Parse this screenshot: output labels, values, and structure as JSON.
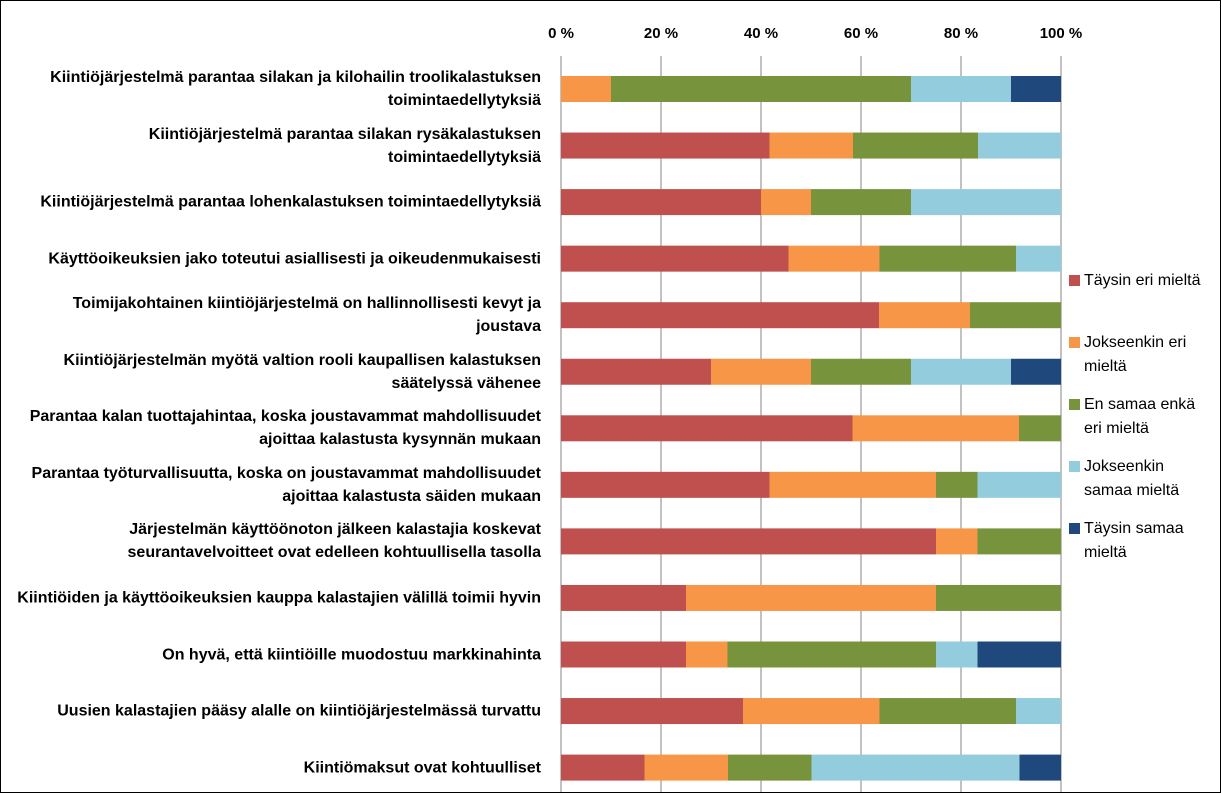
{
  "chart_data": {
    "type": "stacked_barh",
    "categories": [
      "Kiintiöjärjestelmä parantaa silakan ja kilohailin troolikalastuksen toimintaedellytyksiä",
      "Kiintiöjärjestelmä parantaa silakan rysäkalastuksen toimintaedellytyksiä",
      "Kiintiöjärjestelmä parantaa lohenkalastuksen toimintaedellytyksiä",
      "Käyttöoikeuksien jako toteutui asiallisesti ja oikeudenmukaisesti",
      "Toimijakohtainen kiintiöjärjestelmä on hallinnollisesti kevyt ja joustava",
      "Kiintiöjärjestelmän myötä valtion rooli kaupallisen kalastuksen säätelyssä vähenee",
      "Parantaa kalan tuottajahintaa, koska joustavammat mahdollisuudet ajoittaa kalastusta kysynnän mukaan",
      "Parantaa työturvallisuutta, koska on joustavammat mahdollisuudet ajoittaa kalastusta säiden mukaan",
      "Järjestelmän käyttöönoton jälkeen kalastajia koskevat seurantavelvoitteet ovat edelleen kohtuullisella tasolla",
      "Kiintiöiden ja käyttöoikeuksien kauppa kalastajien välillä toimii hyvin",
      "On hyvä, että kiintiöille muodostuu markkinahinta",
      "Uusien kalastajien pääsy alalle on kiintiöjärjestelmässä turvattu",
      "Kiintiömaksut ovat kohtuulliset"
    ],
    "series": [
      {
        "name": "Täysin eri mieltä",
        "color": "#c0504d",
        "values": [
          0,
          41.7,
          40,
          45.5,
          63.6,
          30,
          58.3,
          41.7,
          75,
          25,
          25,
          36.4,
          16.7
        ]
      },
      {
        "name": "Jokseenkin eri mieltä",
        "color": "#f79646",
        "values": [
          10,
          16.7,
          10,
          18.2,
          18.2,
          20,
          33.3,
          33.3,
          8.3,
          50,
          8.3,
          27.3,
          16.7
        ]
      },
      {
        "name": "En samaa enkä eri mieltä",
        "color": "#77933c",
        "values": [
          60,
          25,
          20,
          27.3,
          18.2,
          20,
          8.4,
          8.3,
          16.7,
          25,
          41.7,
          27.3,
          16.7
        ]
      },
      {
        "name": "Jokseenkin samaa mieltä",
        "color": "#93cddd",
        "values": [
          20,
          16.6,
          30,
          9,
          0,
          20,
          0,
          16.7,
          0,
          0,
          8.3,
          9,
          41.6
        ]
      },
      {
        "name": "Täysin samaa mieltä",
        "color": "#1f497d",
        "values": [
          10,
          0,
          0,
          0,
          0,
          10,
          0,
          0,
          0,
          0,
          16.7,
          0,
          8.3
        ]
      }
    ],
    "xlim": [
      0,
      100
    ],
    "xticks": [
      {
        "value": 0,
        "label": "0 %"
      },
      {
        "value": 20,
        "label": "20 %"
      },
      {
        "value": 40,
        "label": "40 %"
      },
      {
        "value": 60,
        "label": "60 %"
      },
      {
        "value": 80,
        "label": "80 %"
      },
      {
        "value": 100,
        "label": "100 %"
      }
    ],
    "grid": true,
    "legend": "right"
  }
}
